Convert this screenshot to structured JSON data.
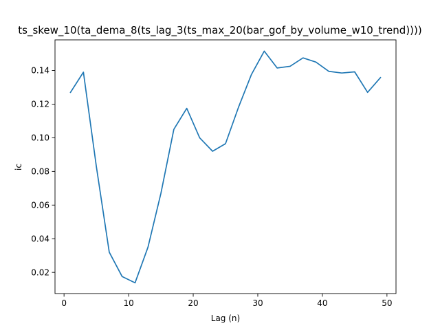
{
  "chart_data": {
    "type": "line",
    "title": "ts_skew_10(ta_dema_8(ts_lag_3(ts_max_20(bar_gof_by_volume_w10_trend))))",
    "xlabel": "Lag (n)",
    "ylabel": "ic",
    "xlim": [
      -1.4,
      51.4
    ],
    "ylim": [
      0.0074,
      0.1582
    ],
    "xticks": [
      0,
      10,
      20,
      30,
      40,
      50
    ],
    "yticks": [
      0.02,
      0.04,
      0.06,
      0.08,
      0.1,
      0.12,
      0.14
    ],
    "ytick_labels": [
      "0.02",
      "0.04",
      "0.06",
      "0.08",
      "0.10",
      "0.12",
      "0.14"
    ],
    "grid": false,
    "series": [
      {
        "color": "#1f77b4",
        "x": [
          1,
          3,
          5,
          7,
          9,
          11,
          13,
          15,
          17,
          19,
          21,
          23,
          25,
          27,
          29,
          31,
          33,
          35,
          37,
          39,
          41,
          43,
          45,
          47,
          49
        ],
        "values": [
          0.127,
          0.139,
          0.083,
          0.032,
          0.0175,
          0.0138,
          0.035,
          0.067,
          0.105,
          0.1175,
          0.1,
          0.092,
          0.0965,
          0.118,
          0.1375,
          0.1515,
          0.1415,
          0.1425,
          0.1475,
          0.145,
          0.1395,
          0.1385,
          0.1392,
          0.127,
          0.1358
        ]
      }
    ]
  }
}
